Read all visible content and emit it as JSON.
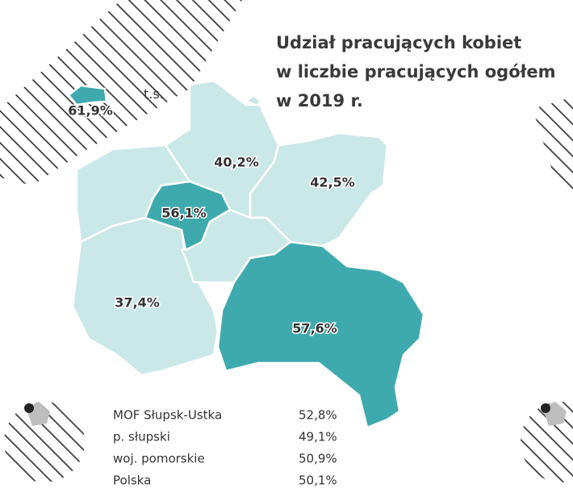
{
  "title": {
    "lines": [
      "Udział pracujących kobiet",
      "w liczbie pracujących ogółem",
      "w 2019 r."
    ]
  },
  "map": {
    "regions": [
      {
        "label": "61,9%"
      },
      {
        "label": "40,2%"
      },
      {
        "label": "42,5%"
      },
      {
        "label": "56,1%"
      },
      {
        "label": "37,4%"
      },
      {
        "label": "57,6%"
      }
    ],
    "annotation": "t.s."
  },
  "table": {
    "rows": [
      [
        "MOF Słupsk-Ustka",
        "52,8%"
      ],
      [
        "p. słupski",
        "49,1%"
      ],
      [
        "woj. pomorskie",
        "50,9%"
      ],
      [
        "Polska",
        "50,1%"
      ]
    ]
  }
}
